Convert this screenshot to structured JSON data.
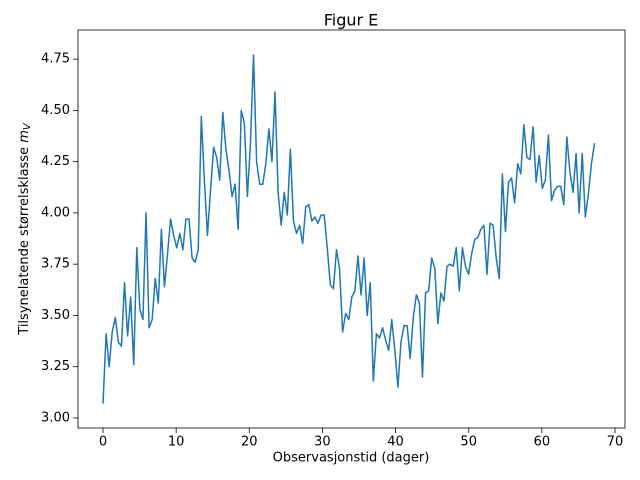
{
  "chart_data": {
    "type": "line",
    "title": "Figur E",
    "xlabel": "Observasjonstid (dager)",
    "ylabel": "Tilsynelatende størrelsklasse",
    "ylabel_symbol": "m",
    "ylabel_subscript": "V",
    "xlim": [
      -3.42,
      71.37
    ],
    "ylim": [
      2.951,
      4.892
    ],
    "xticks": [
      0,
      10,
      20,
      30,
      40,
      50,
      60,
      70
    ],
    "yticks": [
      {
        "value": 3,
        "label": "3.00"
      },
      3.25,
      {
        "value": 3.5,
        "label": "3.50"
      },
      3.75,
      {
        "value": 4,
        "label": "4.00"
      },
      4.25,
      {
        "value": 4.5,
        "label": "4.50"
      },
      4.75
    ],
    "color": "#1f77b4",
    "x": [
      0,
      0.42,
      0.84,
      1.26,
      1.68,
      2.1,
      2.52,
      2.94,
      3.36,
      3.78,
      4.2,
      4.62,
      5.04,
      5.46,
      5.88,
      6.3,
      6.72,
      7.14,
      7.56,
      7.98,
      8.4,
      8.82,
      9.24,
      9.66,
      10.08,
      10.5,
      10.92,
      11.34,
      11.76,
      12.18,
      12.6,
      13.02,
      13.44,
      13.86,
      14.28,
      14.7,
      15.12,
      15.54,
      15.96,
      16.38,
      16.8,
      17.22,
      17.64,
      18.06,
      18.48,
      18.9,
      19.32,
      19.74,
      20.16,
      20.58,
      21,
      21.42,
      21.84,
      22.26,
      22.68,
      23.1,
      23.52,
      23.94,
      24.36,
      24.78,
      25.2,
      25.62,
      26.04,
      26.46,
      26.88,
      27.3,
      27.72,
      28.14,
      28.56,
      28.98,
      29.4,
      29.82,
      30.24,
      30.66,
      31.08,
      31.5,
      31.92,
      32.34,
      32.76,
      33.18,
      33.6,
      34.02,
      34.44,
      34.86,
      35.28,
      35.7,
      36.12,
      36.54,
      36.96,
      37.38,
      37.8,
      38.22,
      38.64,
      39.06,
      39.48,
      39.9,
      40.32,
      40.74,
      41.16,
      41.58,
      42,
      42.42,
      42.84,
      43.26,
      43.68,
      44.1,
      44.52,
      44.94,
      45.36,
      45.78,
      46.2,
      46.62,
      47.04,
      47.46,
      47.88,
      48.3,
      48.72,
      49.14,
      49.56,
      49.98,
      50.4,
      50.82,
      51.24,
      51.66,
      52.08,
      52.5,
      52.92,
      53.34,
      53.76,
      54.18,
      54.6,
      55.02,
      55.44,
      55.86,
      56.28,
      56.7,
      57.12,
      57.54,
      57.96,
      58.38,
      58.8,
      59.22,
      59.64,
      60.06,
      60.48,
      60.9,
      61.32,
      61.74,
      62.16,
      62.58,
      63,
      63.42,
      63.84,
      64.26,
      64.68,
      65.1,
      65.52,
      65.94,
      66.36,
      66.78,
      67.2
    ],
    "values": [
      3.07,
      3.41,
      3.25,
      3.42,
      3.49,
      3.37,
      3.35,
      3.66,
      3.4,
      3.59,
      3.26,
      3.83,
      3.53,
      3.48,
      4.0,
      3.44,
      3.48,
      3.68,
      3.56,
      3.92,
      3.64,
      3.8,
      3.97,
      3.89,
      3.83,
      3.9,
      3.82,
      3.97,
      3.97,
      3.78,
      3.76,
      3.82,
      4.47,
      4.16,
      3.89,
      4.11,
      4.32,
      4.27,
      4.16,
      4.49,
      4.31,
      4.21,
      4.08,
      4.14,
      3.92,
      4.5,
      4.44,
      4.08,
      4.34,
      4.77,
      4.25,
      4.14,
      4.14,
      4.24,
      4.41,
      4.25,
      4.59,
      4.1,
      3.94,
      4.1,
      3.99,
      4.31,
      3.96,
      3.9,
      3.94,
      3.85,
      4.03,
      4.04,
      3.96,
      3.98,
      3.95,
      3.99,
      3.99,
      3.83,
      3.65,
      3.63,
      3.82,
      3.73,
      3.42,
      3.51,
      3.48,
      3.59,
      3.62,
      3.79,
      3.6,
      3.78,
      3.5,
      3.66,
      3.18,
      3.41,
      3.39,
      3.44,
      3.38,
      3.33,
      3.48,
      3.33,
      3.15,
      3.37,
      3.45,
      3.45,
      3.29,
      3.49,
      3.6,
      3.56,
      3.2,
      3.61,
      3.62,
      3.78,
      3.73,
      3.46,
      3.61,
      3.57,
      3.74,
      3.75,
      3.74,
      3.83,
      3.62,
      3.83,
      3.74,
      3.7,
      3.8,
      3.87,
      3.88,
      3.92,
      3.94,
      3.7,
      3.95,
      3.94,
      3.78,
      3.68,
      4.19,
      3.91,
      4.15,
      4.17,
      4.05,
      4.24,
      4.19,
      4.43,
      4.27,
      4.26,
      4.42,
      4.15,
      4.28,
      4.12,
      4.16,
      4.38,
      4.06,
      4.11,
      4.13,
      4.13,
      4.04,
      4.37,
      4.2,
      4.1,
      4.29,
      4.0,
      4.29,
      3.98,
      4.09,
      4.24,
      4.34
    ]
  }
}
